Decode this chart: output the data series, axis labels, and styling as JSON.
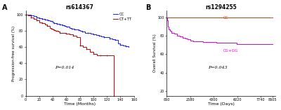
{
  "panel_a": {
    "title": "rs614367",
    "xlabel": "Time (Months)",
    "ylabel": "Progression-free survival (%)",
    "pvalue": "P=0.014",
    "xlim": [
      0,
      160
    ],
    "ylim": [
      0,
      105
    ],
    "xticks": [
      0,
      20,
      40,
      60,
      80,
      100,
      120,
      140,
      160
    ],
    "yticks": [
      0,
      20,
      40,
      60,
      80,
      100
    ],
    "cc_color": "#1a1aff",
    "cttt_color": "#cc0000",
    "cc_x": [
      0,
      4,
      8,
      12,
      16,
      18,
      20,
      22,
      24,
      26,
      28,
      30,
      33,
      36,
      38,
      40,
      42,
      44,
      46,
      48,
      50,
      52,
      54,
      56,
      58,
      60,
      62,
      65,
      68,
      70,
      72,
      75,
      78,
      80,
      84,
      88,
      92,
      96,
      100,
      104,
      108,
      112,
      116,
      120,
      124,
      128,
      132,
      136,
      140,
      144,
      148,
      152
    ],
    "cc_y": [
      100,
      100,
      99,
      98,
      97,
      97,
      96,
      96,
      95,
      95,
      94,
      94,
      93,
      92,
      92,
      91,
      90,
      90,
      89,
      89,
      88,
      88,
      87,
      87,
      86,
      85,
      85,
      84,
      83,
      83,
      82,
      82,
      81,
      80,
      79,
      78,
      78,
      77,
      76,
      75,
      74,
      73,
      72,
      72,
      71,
      70,
      69,
      65,
      63,
      62,
      61,
      60
    ],
    "cttt_x": [
      0,
      4,
      8,
      12,
      16,
      20,
      24,
      28,
      32,
      36,
      38,
      40,
      42,
      44,
      46,
      48,
      50,
      55,
      60,
      65,
      70,
      75,
      80,
      85,
      90,
      95,
      100,
      105,
      110,
      115,
      120,
      125,
      130
    ],
    "cttt_y": [
      100,
      99,
      97,
      95,
      93,
      91,
      90,
      88,
      86,
      84,
      83,
      82,
      81,
      80,
      80,
      79,
      78,
      78,
      77,
      76,
      74,
      72,
      62,
      60,
      58,
      54,
      52,
      50,
      50,
      50,
      50,
      50,
      0
    ],
    "label_a": "A",
    "legend_cc": "CC",
    "legend_cttt": "CT+TT"
  },
  "panel_b": {
    "title": "rs1294255",
    "xlabel": "Time (Days)",
    "ylabel": "Overall Survival (%)",
    "pvalue": "P=0.043",
    "xlim": [
      860,
      8800
    ],
    "ylim": [
      15,
      107
    ],
    "xticks": [
      860,
      2580,
      4300,
      6020,
      7740,
      8605
    ],
    "xtick_labels": [
      "860",
      "2580",
      "4300",
      "6020",
      "7740",
      "8605"
    ],
    "yticks": [
      20,
      40,
      60,
      80,
      100
    ],
    "cc_color": "#ee3300",
    "cg_gg_color": "#dd00dd",
    "cc_x": [
      860,
      870,
      900,
      1000,
      2000,
      3000,
      4000,
      5000,
      6000,
      7000,
      8000,
      8605
    ],
    "cc_y": [
      100,
      100,
      100,
      100,
      100,
      100,
      100,
      100,
      100,
      100,
      100,
      100
    ],
    "cg_gg_x": [
      860,
      880,
      920,
      960,
      1000,
      1100,
      1200,
      1400,
      1600,
      1800,
      2000,
      2200,
      2400,
      2600,
      2800,
      3000,
      3500,
      4000,
      4500,
      5000,
      5500,
      6000,
      6500,
      7000,
      7500,
      8000,
      8500,
      8605
    ],
    "cg_gg_y": [
      100,
      97,
      93,
      90,
      87,
      85,
      83,
      82,
      80,
      79,
      78,
      77,
      76,
      75,
      74,
      74,
      73,
      73,
      72,
      72,
      72,
      71,
      71,
      71,
      71,
      71,
      71,
      71
    ],
    "label_b": "B",
    "legend_cc": "CC",
    "legend_cg_gg": "CG+GG"
  }
}
